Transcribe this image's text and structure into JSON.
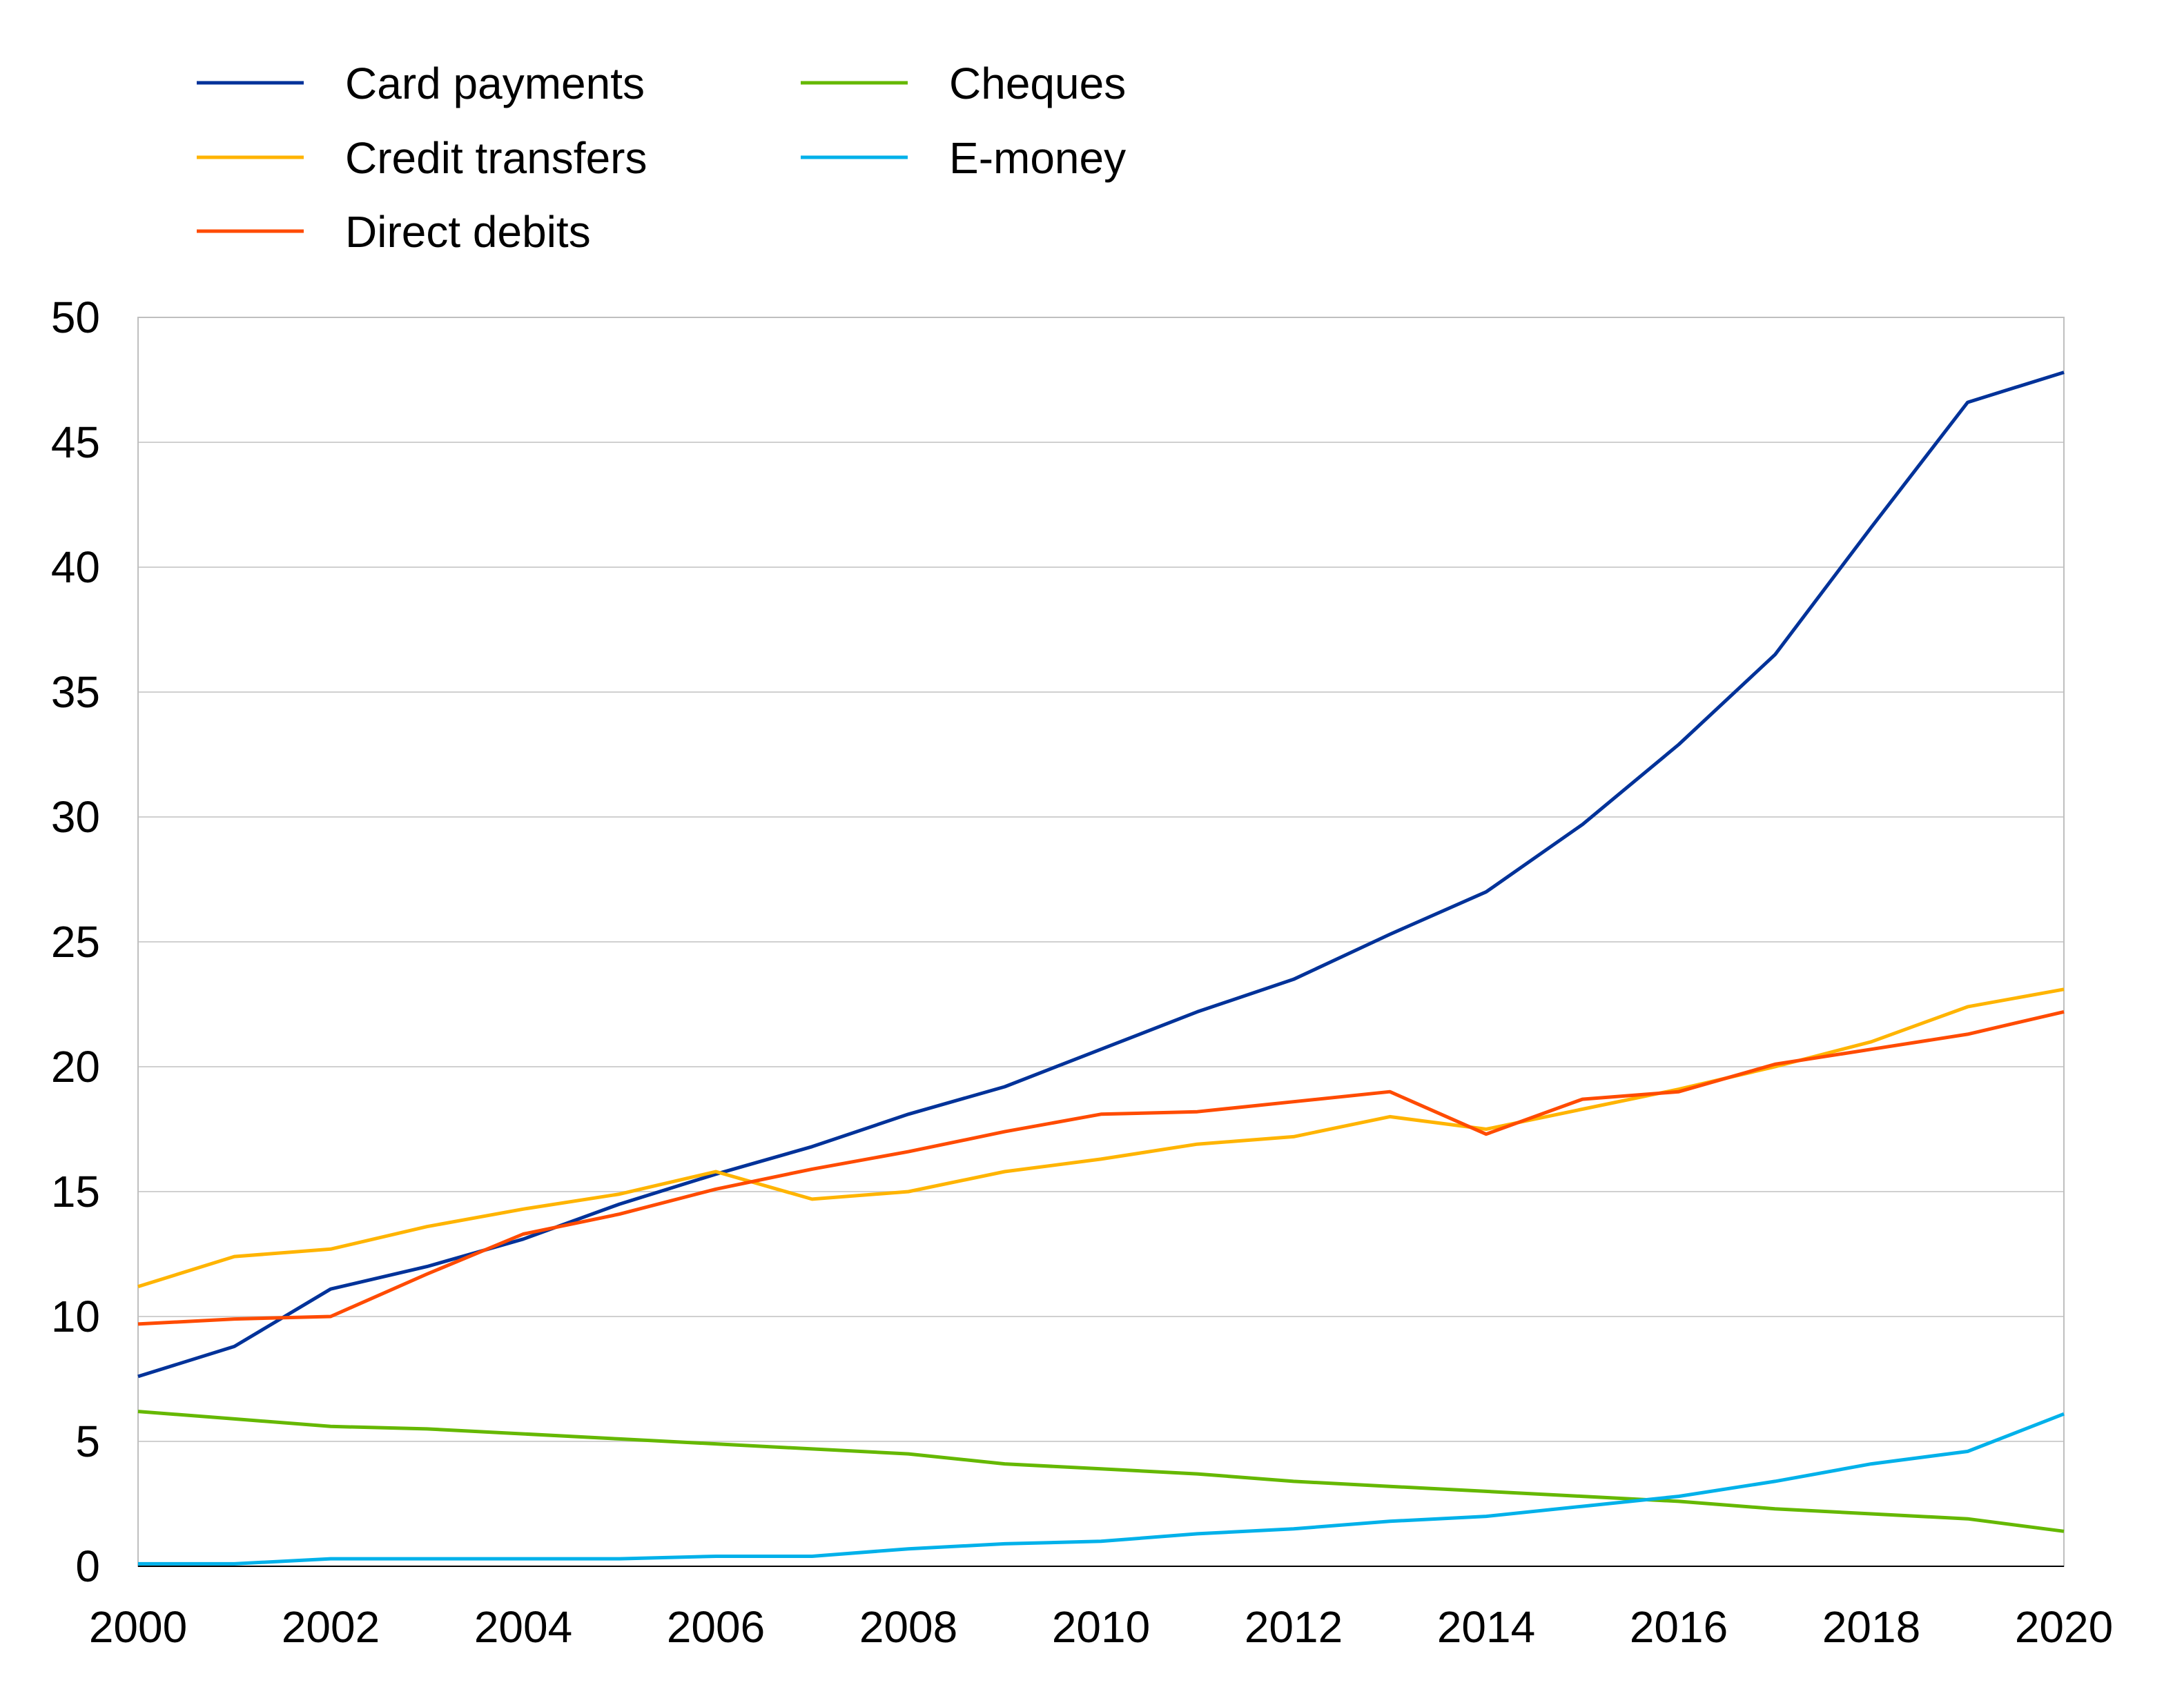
{
  "chart_data": {
    "type": "line",
    "title": "",
    "xlabel": "",
    "ylabel": "",
    "xlim": [
      2000,
      2020
    ],
    "ylim": [
      0,
      50
    ],
    "yticks": [
      0,
      5,
      10,
      15,
      20,
      25,
      30,
      35,
      40,
      45,
      50
    ],
    "xticks": [
      2000,
      2002,
      2004,
      2006,
      2008,
      2010,
      2012,
      2014,
      2016,
      2018,
      2020
    ],
    "grid": "horizontal",
    "legend_position": "top-left",
    "x": [
      2000,
      2001,
      2002,
      2003,
      2004,
      2005,
      2006,
      2007,
      2008,
      2009,
      2010,
      2011,
      2012,
      2013,
      2014,
      2015,
      2016,
      2017,
      2018,
      2019,
      2020
    ],
    "series": [
      {
        "name": "Card payments",
        "color": "#003299",
        "values": [
          7.6,
          8.8,
          11.1,
          12.0,
          13.1,
          14.5,
          15.7,
          16.8,
          18.1,
          19.2,
          20.7,
          22.2,
          23.5,
          25.3,
          27.0,
          29.7,
          32.9,
          36.5,
          41.6,
          46.6,
          47.8
        ]
      },
      {
        "name": "Credit transfers",
        "color": "#FFB400",
        "values": [
          11.2,
          12.4,
          12.7,
          13.6,
          14.3,
          14.9,
          15.8,
          14.7,
          15.0,
          15.8,
          16.3,
          16.9,
          17.2,
          18.0,
          17.5,
          18.3,
          19.1,
          20.0,
          21.0,
          22.4,
          23.1
        ]
      },
      {
        "name": "Direct debits",
        "color": "#FF4B00",
        "values": [
          9.7,
          9.9,
          10.0,
          11.7,
          13.3,
          14.1,
          15.1,
          15.9,
          16.6,
          17.4,
          18.1,
          18.2,
          18.6,
          19.0,
          17.3,
          18.7,
          19.0,
          20.1,
          20.7,
          21.3,
          22.2
        ]
      },
      {
        "name": "Cheques",
        "color": "#65B800",
        "values": [
          6.2,
          5.9,
          5.6,
          5.5,
          5.3,
          5.1,
          4.9,
          4.7,
          4.5,
          4.1,
          3.9,
          3.7,
          3.4,
          3.2,
          3.0,
          2.8,
          2.6,
          2.3,
          2.1,
          1.9,
          1.4
        ]
      },
      {
        "name": "E-money",
        "color": "#00B1EA",
        "values": [
          0.1,
          0.1,
          0.3,
          0.3,
          0.3,
          0.3,
          0.4,
          0.4,
          0.7,
          0.9,
          1.0,
          1.3,
          1.5,
          1.8,
          2.0,
          2.4,
          2.8,
          3.4,
          4.1,
          4.6,
          6.1
        ]
      }
    ],
    "legend_columns": [
      [
        "Card payments",
        "Credit transfers",
        "Direct debits"
      ],
      [
        "Cheques",
        "E-money"
      ]
    ]
  }
}
